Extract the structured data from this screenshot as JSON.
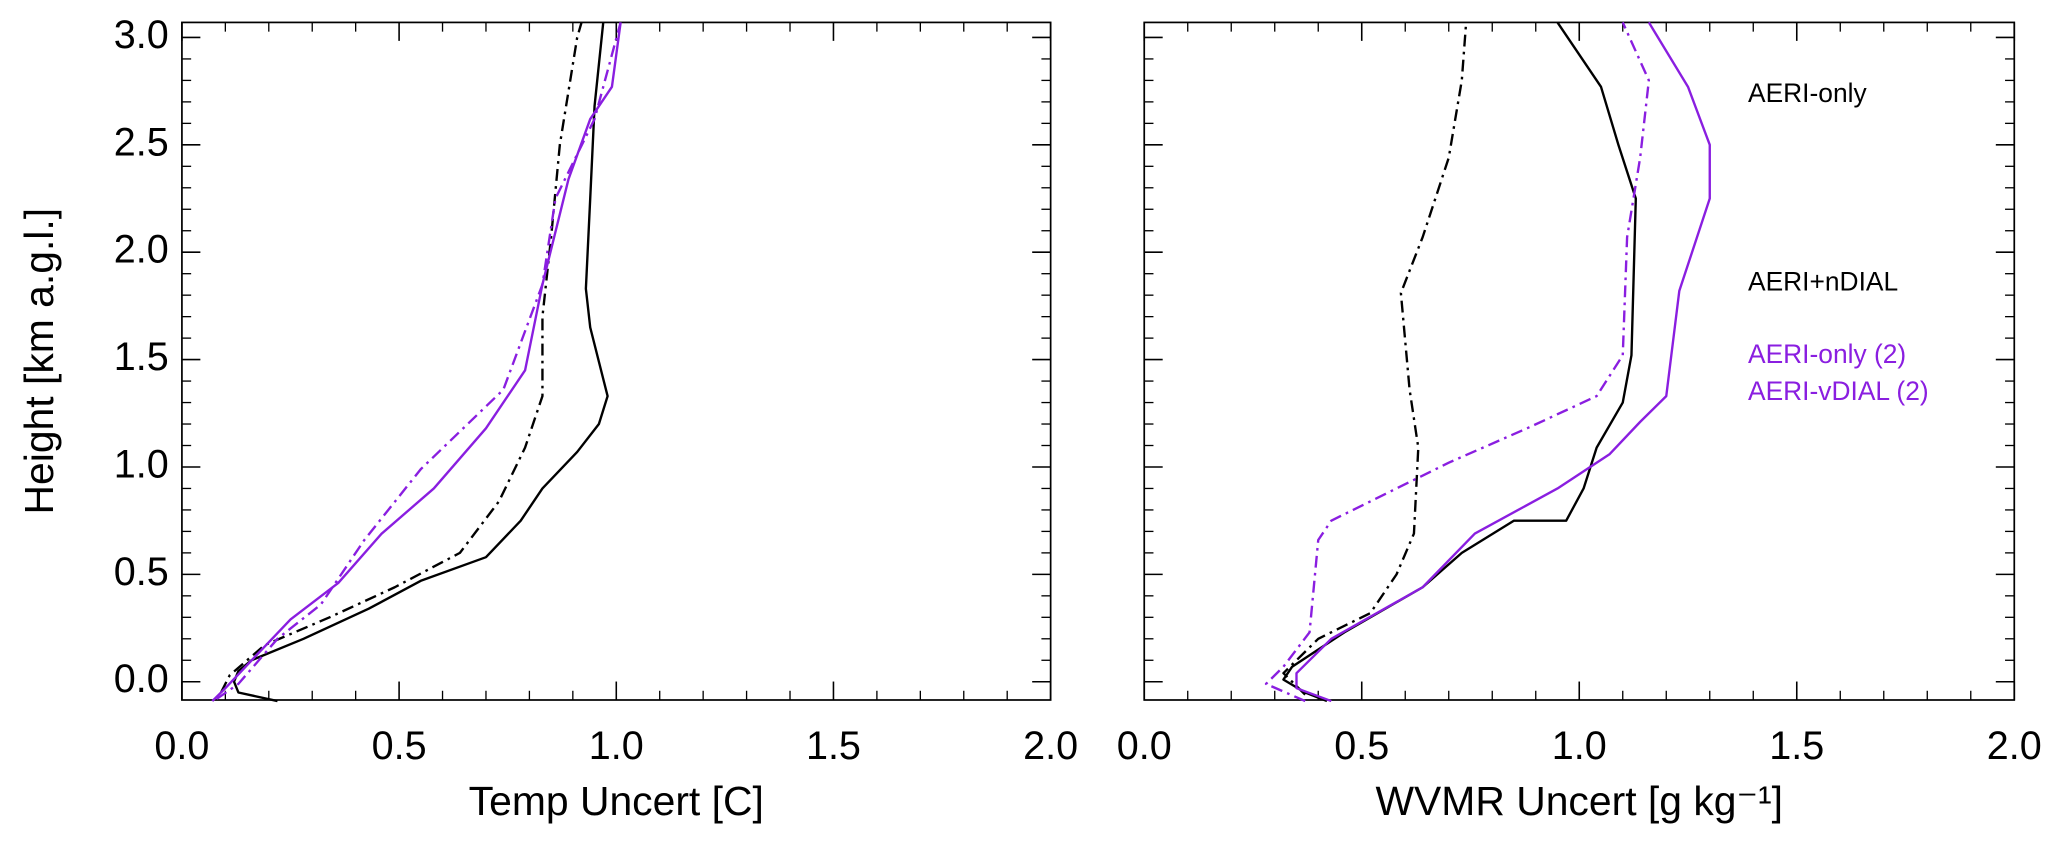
{
  "chart_data": [
    {
      "type": "line",
      "xlabel": "Temp Uncert [C]",
      "ylabel": "Height [km a.g.l.]",
      "xlim": [
        0,
        2
      ],
      "ylim": [
        -0.085,
        3.07
      ],
      "xticks": [
        {
          "value": 0,
          "label": "0.0"
        },
        {
          "value": 0.5,
          "label": "0.5"
        },
        {
          "value": 1,
          "label": "1.0"
        },
        {
          "value": 1.5,
          "label": "1.5"
        },
        {
          "value": 2,
          "label": "2.0"
        }
      ],
      "yticks": [
        {
          "value": 0,
          "label": "0.0"
        },
        {
          "value": 0.5,
          "label": "0.5"
        },
        {
          "value": 1,
          "label": "1.0"
        },
        {
          "value": 1.5,
          "label": "1.5"
        },
        {
          "value": 2,
          "label": "2.0"
        },
        {
          "value": 2.5,
          "label": "2.5"
        },
        {
          "value": 3,
          "label": "3.0"
        }
      ],
      "xminorticks": [
        0.1,
        0.2,
        0.3,
        0.4,
        0.6,
        0.7,
        0.8,
        0.9,
        1.1,
        1.2,
        1.3,
        1.4,
        1.6,
        1.7,
        1.8,
        1.9
      ],
      "yminorticks": [
        0.1,
        0.2,
        0.3,
        0.4,
        0.6,
        0.7,
        0.8,
        0.9,
        1.1,
        1.2,
        1.3,
        1.4,
        1.6,
        1.7,
        1.8,
        1.9,
        2.1,
        2.2,
        2.3,
        2.4,
        2.6,
        2.7,
        2.8,
        2.9
      ],
      "show_ytick_labels": true,
      "series": [
        {
          "color": "#000000",
          "dash": "solid",
          "x": [
            0.22,
            0.13,
            0.12,
            0.13,
            0.16,
            0.28,
            0.43,
            0.55,
            0.7,
            0.78,
            0.83,
            0.91,
            0.96,
            0.98,
            0.94,
            0.93,
            0.94,
            0.95,
            0.97
          ],
          "y": [
            -0.09,
            -0.05,
            0.0,
            0.05,
            0.1,
            0.2,
            0.34,
            0.47,
            0.58,
            0.75,
            0.9,
            1.07,
            1.2,
            1.33,
            1.65,
            1.83,
            2.25,
            2.68,
            3.07
          ]
        },
        {
          "color": "#000000",
          "dash": "dashdot",
          "x": [
            0.09,
            0.11,
            0.19,
            0.34,
            0.49,
            0.64,
            0.73,
            0.79,
            0.83,
            0.83,
            0.85,
            0.87,
            0.91,
            0.92
          ],
          "y": [
            -0.05,
            0.03,
            0.17,
            0.3,
            0.44,
            0.6,
            0.84,
            1.09,
            1.33,
            1.7,
            2.07,
            2.5,
            3.0,
            3.07
          ]
        },
        {
          "color": "#8a1ee0",
          "dash": "solid",
          "x": [
            0.07,
            0.1,
            0.17,
            0.25,
            0.36,
            0.46,
            0.58,
            0.7,
            0.79,
            0.83,
            0.89,
            0.94,
            0.99,
            1.01
          ],
          "y": [
            -0.09,
            -0.03,
            0.12,
            0.29,
            0.46,
            0.69,
            0.9,
            1.18,
            1.45,
            1.85,
            2.34,
            2.62,
            2.77,
            3.07
          ]
        },
        {
          "color": "#8a1ee0",
          "dash": "dashdot",
          "x": [
            0.08,
            0.13,
            0.22,
            0.32,
            0.42,
            0.55,
            0.74,
            0.83,
            0.86,
            0.95,
            1.01
          ],
          "y": [
            -0.08,
            -0.01,
            0.2,
            0.36,
            0.66,
            0.99,
            1.36,
            1.85,
            2.25,
            2.62,
            3.07
          ]
        }
      ]
    },
    {
      "type": "line",
      "xlabel": "WVMR Uncert [g kg⁻¹]",
      "xlim": [
        0,
        2
      ],
      "ylim": [
        -0.085,
        3.07
      ],
      "xticks": [
        {
          "value": 0,
          "label": "0.0"
        },
        {
          "value": 0.5,
          "label": "0.5"
        },
        {
          "value": 1,
          "label": "1.0"
        },
        {
          "value": 1.5,
          "label": "1.5"
        },
        {
          "value": 2,
          "label": "2.0"
        }
      ],
      "yticks": [
        0,
        0.5,
        1,
        1.5,
        2,
        2.5,
        3
      ],
      "xminorticks": [
        0.1,
        0.2,
        0.3,
        0.4,
        0.6,
        0.7,
        0.8,
        0.9,
        1.1,
        1.2,
        1.3,
        1.4,
        1.6,
        1.7,
        1.8,
        1.9
      ],
      "yminorticks": [
        0.1,
        0.2,
        0.3,
        0.4,
        0.6,
        0.7,
        0.8,
        0.9,
        1.1,
        1.2,
        1.3,
        1.4,
        1.6,
        1.7,
        1.8,
        1.9,
        2.1,
        2.2,
        2.3,
        2.4,
        2.6,
        2.7,
        2.8,
        2.9
      ],
      "show_ytick_labels": false,
      "series": [
        {
          "name": "AERI-only",
          "color": "#000000",
          "dash": "solid",
          "x": [
            0.42,
            0.37,
            0.32,
            0.34,
            0.46,
            0.64,
            0.73,
            0.85,
            0.97,
            1.01,
            1.04,
            1.1,
            1.12,
            1.13,
            1.09,
            1.05,
            0.95
          ],
          "y": [
            -0.09,
            -0.05,
            0.01,
            0.07,
            0.23,
            0.44,
            0.6,
            0.75,
            0.75,
            0.9,
            1.09,
            1.3,
            1.52,
            2.25,
            2.5,
            2.77,
            3.07
          ]
        },
        {
          "name": "AERI+nDIAL",
          "color": "#000000",
          "dash": "dashdot",
          "x": [
            0.37,
            0.32,
            0.4,
            0.52,
            0.58,
            0.62,
            0.63,
            0.61,
            0.59,
            0.64,
            0.7,
            0.73,
            0.74
          ],
          "y": [
            -0.06,
            0.04,
            0.2,
            0.32,
            0.5,
            0.69,
            1.09,
            1.36,
            1.81,
            2.07,
            2.44,
            2.8,
            3.07
          ]
        },
        {
          "name": "AERI-only (2)",
          "color": "#8a1ee0",
          "dash": "solid",
          "x": [
            0.43,
            0.35,
            0.35,
            0.43,
            0.64,
            0.76,
            0.95,
            1.07,
            1.14,
            1.2,
            1.23,
            1.3,
            1.3,
            1.25,
            1.16
          ],
          "y": [
            -0.09,
            -0.03,
            0.04,
            0.2,
            0.44,
            0.69,
            0.9,
            1.06,
            1.21,
            1.33,
            1.82,
            2.25,
            2.5,
            2.77,
            3.07
          ]
        },
        {
          "name": "AERI-vDIAL (2)",
          "color": "#8a1ee0",
          "dash": "dashdot",
          "x": [
            0.37,
            0.28,
            0.32,
            0.38,
            0.4,
            0.43,
            0.7,
            0.88,
            1.04,
            1.1,
            1.11,
            1.14,
            1.16,
            1.1
          ],
          "y": [
            -0.09,
            -0.01,
            0.07,
            0.23,
            0.66,
            0.75,
            1.02,
            1.18,
            1.33,
            1.52,
            2.07,
            2.44,
            2.8,
            3.07
          ]
        }
      ]
    }
  ]
}
